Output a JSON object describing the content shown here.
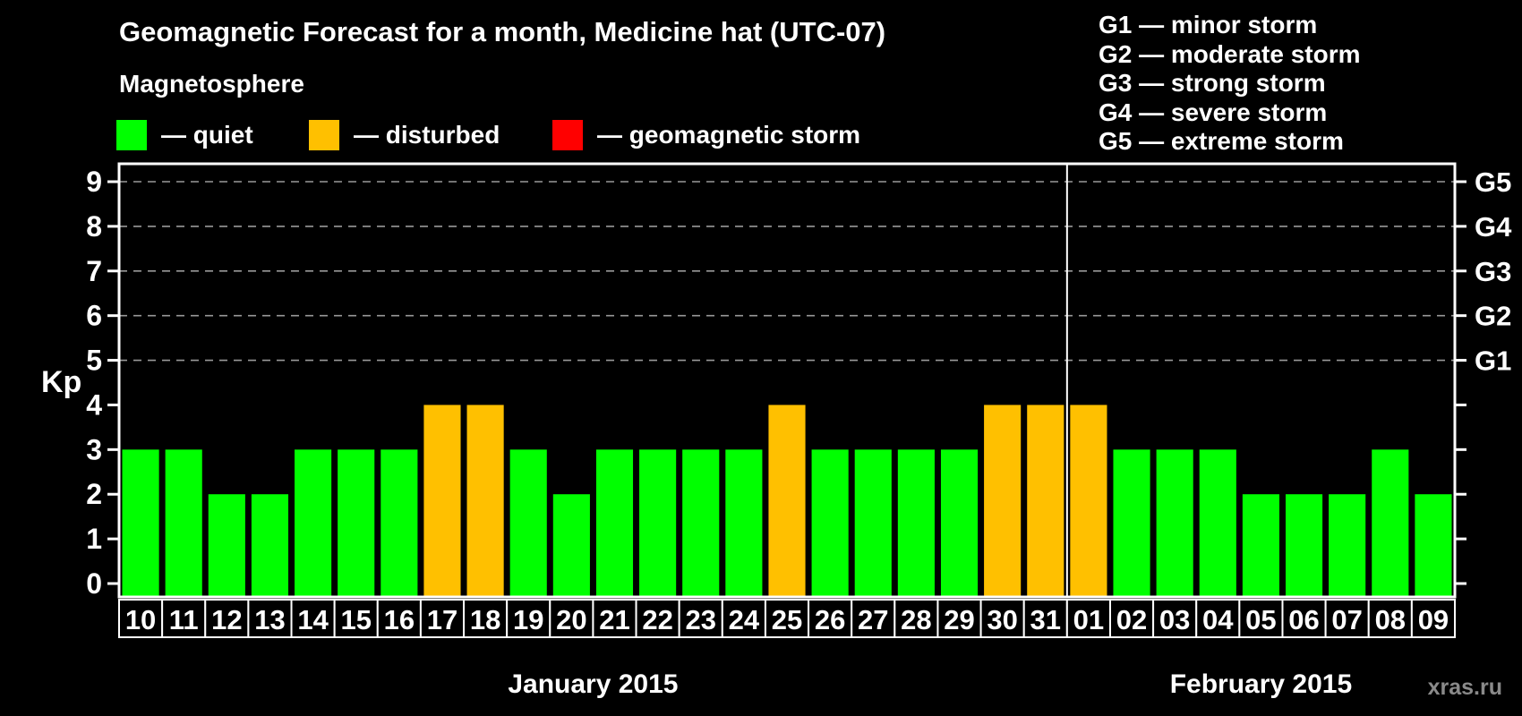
{
  "title": "Geomagnetic Forecast for a month, Medicine hat (UTC-07)",
  "watermark": "xras.ru",
  "legend": {
    "title": "Magnetosphere",
    "items": [
      {
        "name": "quiet",
        "label": "— quiet",
        "color": "#00ff00"
      },
      {
        "name": "disturbed",
        "label": "— disturbed",
        "color": "#ffc000"
      },
      {
        "name": "storm",
        "label": "— geomagnetic storm",
        "color": "#ff0000"
      }
    ]
  },
  "storm_scale_legend": [
    "G1 — minor storm",
    "G2 — moderate storm",
    "G3 — strong storm",
    "G4 — severe storm",
    "G5 — extreme storm"
  ],
  "chart_data": {
    "type": "bar",
    "ylabel": "Kp",
    "ylim": [
      0,
      9.4
    ],
    "yticks": [
      0,
      1,
      2,
      3,
      4,
      5,
      6,
      7,
      8,
      9
    ],
    "gridlines_at": [
      5,
      6,
      7,
      8,
      9
    ],
    "grid": "dashed",
    "right_axis_labels": [
      {
        "kp": 5,
        "label": "G1"
      },
      {
        "kp": 6,
        "label": "G2"
      },
      {
        "kp": 7,
        "label": "G3"
      },
      {
        "kp": 8,
        "label": "G4"
      },
      {
        "kp": 9,
        "label": "G5"
      }
    ],
    "months": [
      {
        "label": "January 2015",
        "days": 22
      },
      {
        "label": "February 2015",
        "days": 9
      }
    ],
    "categories": [
      "10",
      "11",
      "12",
      "13",
      "14",
      "15",
      "16",
      "17",
      "18",
      "19",
      "20",
      "21",
      "22",
      "23",
      "24",
      "25",
      "26",
      "27",
      "28",
      "29",
      "30",
      "31",
      "01",
      "02",
      "03",
      "04",
      "05",
      "06",
      "07",
      "08",
      "09"
    ],
    "values": [
      3,
      3,
      2,
      2,
      3,
      3,
      3,
      4,
      4,
      3,
      2,
      3,
      3,
      3,
      3,
      4,
      3,
      3,
      3,
      3,
      4,
      4,
      4,
      3,
      3,
      3,
      2,
      2,
      2,
      3,
      2
    ],
    "statuses": [
      "quiet",
      "quiet",
      "quiet",
      "quiet",
      "quiet",
      "quiet",
      "quiet",
      "disturbed",
      "disturbed",
      "quiet",
      "quiet",
      "quiet",
      "quiet",
      "quiet",
      "quiet",
      "disturbed",
      "quiet",
      "quiet",
      "quiet",
      "quiet",
      "disturbed",
      "disturbed",
      "disturbed",
      "quiet",
      "quiet",
      "quiet",
      "quiet",
      "quiet",
      "quiet",
      "quiet",
      "quiet"
    ],
    "status_colors": {
      "quiet": "#00ff00",
      "disturbed": "#ffc000",
      "storm": "#ff0000"
    },
    "axis_color": "#ffffff",
    "gridline_color": "#999999",
    "background_color": "#000000"
  }
}
